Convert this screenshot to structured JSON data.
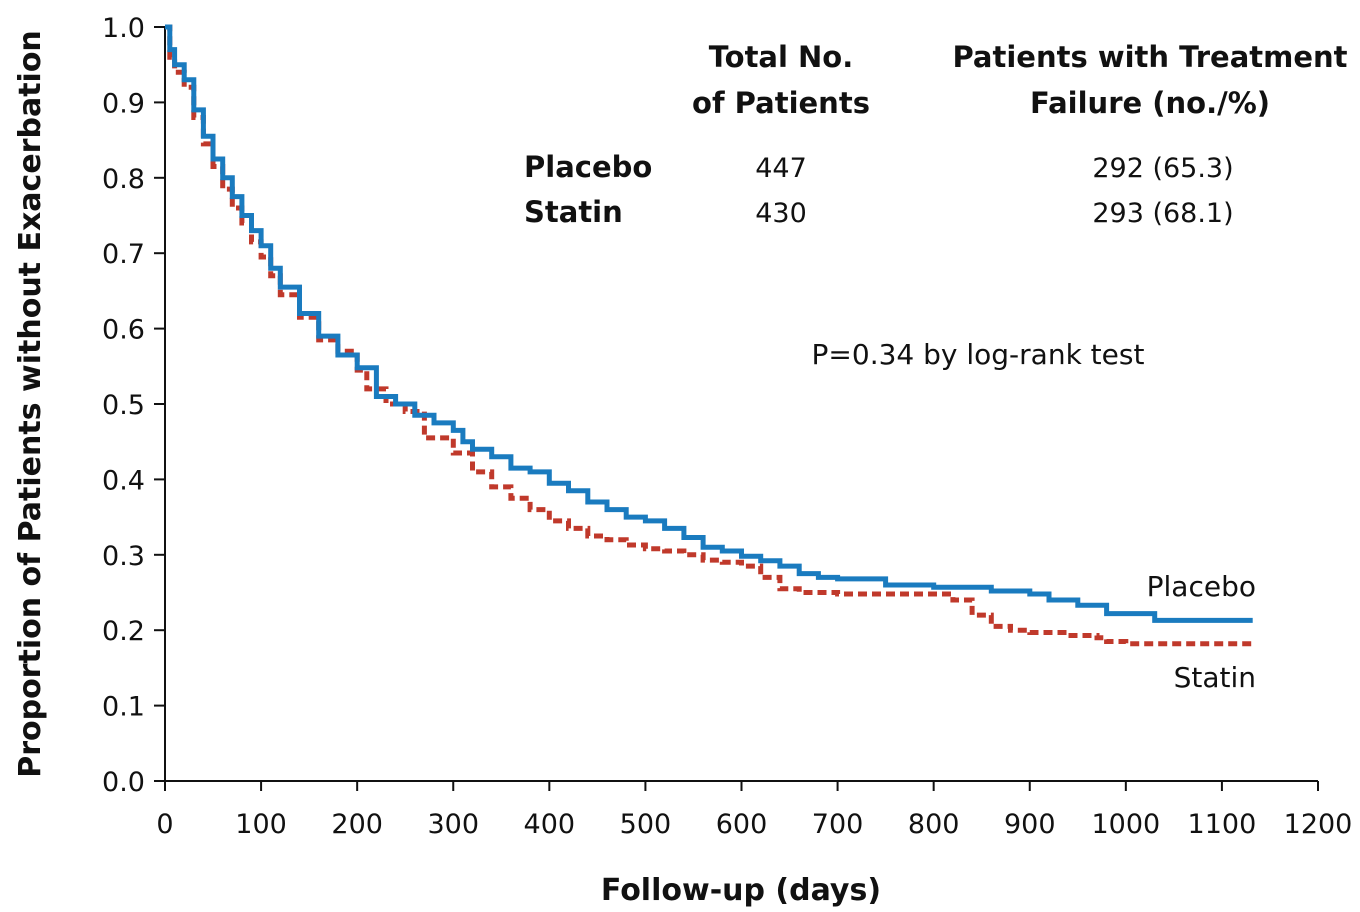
{
  "chart_data": {
    "type": "line",
    "xlabel": "Follow-up (days)",
    "ylabel": "Proportion of Patients without Exacerbation",
    "xlim": [
      0,
      1200
    ],
    "ylim": [
      0,
      1.0
    ],
    "x_ticks": [
      "0",
      "100",
      "200",
      "300",
      "400",
      "500",
      "600",
      "700",
      "800",
      "900",
      "1000",
      "1100",
      "1200"
    ],
    "y_ticks": [
      "0.0",
      "0.1",
      "0.2",
      "0.3",
      "0.4",
      "0.5",
      "0.6",
      "0.7",
      "0.8",
      "0.9",
      "1.0"
    ],
    "grid": false,
    "series": [
      {
        "name": "Placebo",
        "color": "#1a7bbf",
        "style": "solid-step",
        "points": [
          [
            0,
            1.0
          ],
          [
            5,
            0.97
          ],
          [
            10,
            0.95
          ],
          [
            20,
            0.93
          ],
          [
            30,
            0.89
          ],
          [
            40,
            0.855
          ],
          [
            50,
            0.825
          ],
          [
            60,
            0.8
          ],
          [
            70,
            0.775
          ],
          [
            80,
            0.75
          ],
          [
            90,
            0.73
          ],
          [
            100,
            0.71
          ],
          [
            110,
            0.68
          ],
          [
            120,
            0.655
          ],
          [
            140,
            0.62
          ],
          [
            160,
            0.59
          ],
          [
            180,
            0.565
          ],
          [
            200,
            0.548
          ],
          [
            220,
            0.51
          ],
          [
            240,
            0.5
          ],
          [
            260,
            0.485
          ],
          [
            280,
            0.475
          ],
          [
            300,
            0.465
          ],
          [
            310,
            0.45
          ],
          [
            320,
            0.44
          ],
          [
            340,
            0.43
          ],
          [
            360,
            0.415
          ],
          [
            380,
            0.41
          ],
          [
            400,
            0.395
          ],
          [
            420,
            0.385
          ],
          [
            440,
            0.37
          ],
          [
            460,
            0.36
          ],
          [
            480,
            0.35
          ],
          [
            500,
            0.345
          ],
          [
            520,
            0.335
          ],
          [
            540,
            0.323
          ],
          [
            560,
            0.31
          ],
          [
            580,
            0.305
          ],
          [
            600,
            0.298
          ],
          [
            620,
            0.292
          ],
          [
            640,
            0.285
          ],
          [
            660,
            0.275
          ],
          [
            680,
            0.27
          ],
          [
            700,
            0.268
          ],
          [
            750,
            0.26
          ],
          [
            800,
            0.257
          ],
          [
            860,
            0.252
          ],
          [
            900,
            0.248
          ],
          [
            920,
            0.24
          ],
          [
            950,
            0.233
          ],
          [
            980,
            0.222
          ],
          [
            1030,
            0.213
          ],
          [
            1100,
            0.213
          ],
          [
            1132,
            0.213
          ]
        ]
      },
      {
        "name": "Statin",
        "color": "#c0392b",
        "style": "dashed-step",
        "points": [
          [
            0,
            1.0
          ],
          [
            5,
            0.96
          ],
          [
            10,
            0.94
          ],
          [
            20,
            0.92
          ],
          [
            30,
            0.88
          ],
          [
            40,
            0.845
          ],
          [
            50,
            0.815
          ],
          [
            60,
            0.785
          ],
          [
            70,
            0.76
          ],
          [
            80,
            0.74
          ],
          [
            90,
            0.715
          ],
          [
            100,
            0.695
          ],
          [
            110,
            0.67
          ],
          [
            120,
            0.645
          ],
          [
            140,
            0.615
          ],
          [
            160,
            0.585
          ],
          [
            180,
            0.57
          ],
          [
            200,
            0.545
          ],
          [
            210,
            0.52
          ],
          [
            230,
            0.5
          ],
          [
            250,
            0.49
          ],
          [
            270,
            0.455
          ],
          [
            300,
            0.435
          ],
          [
            320,
            0.41
          ],
          [
            340,
            0.39
          ],
          [
            360,
            0.375
          ],
          [
            380,
            0.36
          ],
          [
            400,
            0.345
          ],
          [
            420,
            0.335
          ],
          [
            440,
            0.325
          ],
          [
            460,
            0.32
          ],
          [
            480,
            0.313
          ],
          [
            500,
            0.308
          ],
          [
            520,
            0.305
          ],
          [
            540,
            0.3
          ],
          [
            560,
            0.293
          ],
          [
            580,
            0.29
          ],
          [
            600,
            0.285
          ],
          [
            620,
            0.27
          ],
          [
            640,
            0.255
          ],
          [
            660,
            0.25
          ],
          [
            700,
            0.248
          ],
          [
            760,
            0.248
          ],
          [
            820,
            0.24
          ],
          [
            840,
            0.22
          ],
          [
            860,
            0.205
          ],
          [
            880,
            0.2
          ],
          [
            900,
            0.197
          ],
          [
            940,
            0.193
          ],
          [
            970,
            0.19
          ],
          [
            980,
            0.185
          ],
          [
            1000,
            0.182
          ],
          [
            1100,
            0.182
          ],
          [
            1132,
            0.182
          ]
        ]
      }
    ],
    "table": {
      "col1_header": [
        "Total No.",
        "of Patients"
      ],
      "col2_header": [
        "Patients with Treatment",
        "Failure (no./%)"
      ],
      "rows": [
        {
          "group": "Placebo",
          "total": "447",
          "failure": "292 (65.3)"
        },
        {
          "group": "Statin",
          "total": "430",
          "failure": "293 (68.1)"
        }
      ]
    },
    "annotation": "P=0.34 by log-rank test",
    "end_labels": {
      "placebo": "Placebo",
      "statin": "Statin"
    }
  }
}
